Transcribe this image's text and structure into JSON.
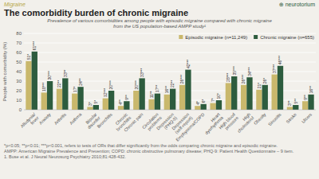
{
  "chart_data": {
    "type": "bar",
    "title": "The comorbidity burden of chronic migraine",
    "subtitle": "Prevalence of various comorbidities among people with episodic migraine compared with chronic migraine\nfrom the US population-based AMPP study¹",
    "ylabel": "People with comorbidity (%)",
    "annotations": [
      "Migraine",
      "⊕ neurotorium"
    ],
    "footnotes": [
      "*p<0.05; **p<0.01; ***p<0.001, refers to tests of ORs that differ significantly from the odds comparing chronic migraine and episodic migraine.",
      "AMPP: American Migraine Prevalence and Prevention; COPD: chronic obstructive pulmonary disease; PHQ-9: Patient Health Questionnaire – 9 item.",
      "1. Buse et al. J Neural Neurosurg Psychiatry 2010;81:428-432."
    ],
    "categories": [
      "Allodynia/\nfever",
      "Anxiety",
      "Arthritis",
      "Asthma",
      "Bipolar\ndisorder",
      "Bronchitis",
      "Chronic\nbronchitis",
      "Chronic pain",
      "Circulation\nproblems",
      "Depression\n(PHQ-9)",
      "Depression\n(self-report)",
      "Emphysema/COPD",
      "Heart\ndysrhythmia",
      "High blood\npressure",
      "High\ncholesterol",
      "Obesity",
      "Sinusitis",
      "Stroke",
      "Ulcers"
    ],
    "series": [
      {
        "name": "Episodic migraine (n=11,249)",
        "color": "#c9b86c",
        "values": [
          51,
          18,
          22,
          17,
          3,
          12,
          4,
          20,
          11,
          16,
          26,
          4,
          7,
          28,
          26,
          21,
          37,
          3,
          9
        ],
        "value_labels": [
          "51*",
          "18***",
          "22**",
          "17*",
          "3*",
          "12***",
          "4**",
          "20***",
          "11**",
          "16**",
          "26***",
          "4*",
          "7*",
          "28***",
          "26***",
          "21*",
          "37***",
          "3**",
          "9**"
        ]
      },
      {
        "name": "Chronic migraine (n=655)",
        "color": "#2d5c3e",
        "values": [
          61,
          30,
          33,
          24,
          5,
          20,
          9,
          33,
          17,
          22,
          42,
          6,
          10,
          35,
          34,
          26,
          46,
          5,
          16
        ],
        "value_labels": [
          "61***",
          "30***",
          "33**",
          "24**",
          "5*",
          "20***",
          "9**",
          "33***",
          "17**",
          "22**",
          "42***",
          "6*",
          "10*",
          "35***",
          "34***",
          "26*",
          "46***",
          "5**",
          "16**"
        ]
      }
    ],
    "ylim": [
      0,
      80
    ],
    "yticks": [
      0,
      10,
      20,
      30,
      40,
      50,
      60,
      70,
      80
    ],
    "grid": true,
    "legend": "upper right",
    "data_labels": true
  }
}
